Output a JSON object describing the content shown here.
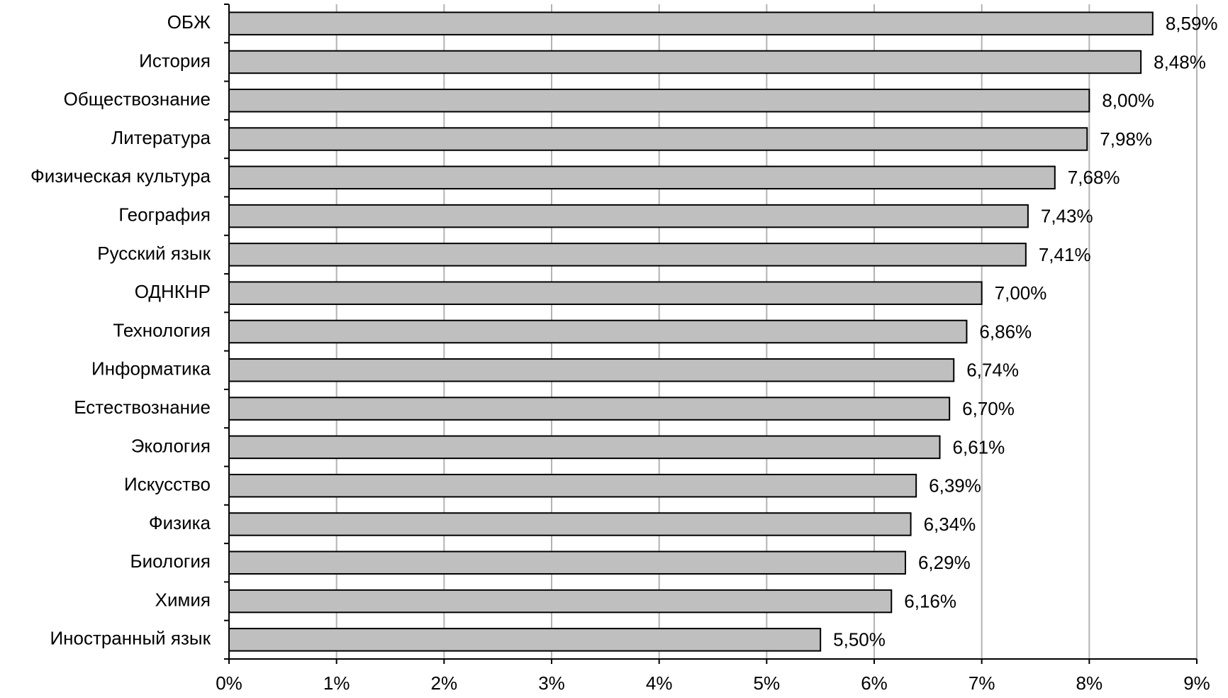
{
  "chart_data": {
    "type": "bar",
    "orientation": "horizontal",
    "categories": [
      "ОБЖ",
      "История",
      "Обществознание",
      "Литература",
      "Физическая культура",
      "География",
      "Русский язык",
      "ОДНКНР",
      "Технология",
      "Информатика",
      "Естествознание",
      "Экология",
      "Искусство",
      "Физика",
      "Биология",
      "Химия",
      "Иностранный язык"
    ],
    "values": [
      8.59,
      8.48,
      8.0,
      7.98,
      7.68,
      7.43,
      7.41,
      7.0,
      6.86,
      6.74,
      6.7,
      6.61,
      6.39,
      6.34,
      6.29,
      6.16,
      5.5
    ],
    "value_labels": [
      "8,59%",
      "8,48%",
      "8,00%",
      "7,98%",
      "7,68%",
      "7,43%",
      "7,41%",
      "7,00%",
      "6,86%",
      "6,74%",
      "6,70%",
      "6,61%",
      "6,39%",
      "6,34%",
      "6,29%",
      "6,16%",
      "5,50%"
    ],
    "color": "#bfbfbf",
    "xlim": [
      0,
      9
    ],
    "xticks": [
      {
        "value": 0,
        "label": "0%"
      },
      {
        "value": 1,
        "label": "1%"
      },
      {
        "value": 2,
        "label": "2%"
      },
      {
        "value": 3,
        "label": "3%"
      },
      {
        "value": 4,
        "label": "4%"
      },
      {
        "value": 5,
        "label": "5%"
      },
      {
        "value": 6,
        "label": "6%"
      },
      {
        "value": 7,
        "label": "7%"
      },
      {
        "value": 8,
        "label": "8%"
      },
      {
        "value": 9,
        "label": "9%"
      }
    ],
    "grid": true
  }
}
